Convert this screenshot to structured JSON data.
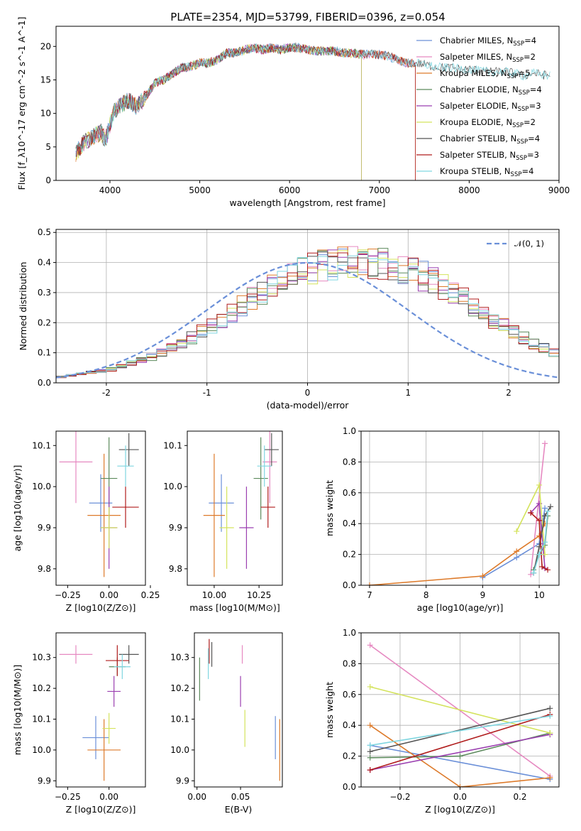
{
  "figure": {
    "title": "PLATE=2354, MJD=53799, FIBERID=0396, z=0.054"
  },
  "chart_data": [
    {
      "id": "spectrum",
      "type": "line",
      "xlabel": "wavelength [Angstrom, rest frame]",
      "ylabel": "Flux [f_λ10^-17 erg cm^-2 s^-1 A^-1]",
      "xlim": [
        3400,
        9000
      ],
      "ylim": [
        0,
        23
      ],
      "xticks": [
        4000,
        5000,
        6000,
        7000,
        8000,
        9000
      ],
      "yticks": [
        0,
        5,
        10,
        15,
        20
      ],
      "grid": false,
      "legend_position": "right",
      "continuum": {
        "x": [
          3620,
          3700,
          3800,
          3900,
          3950,
          4050,
          4100,
          4200,
          4300,
          4400,
          4500,
          4600,
          4700,
          4800,
          4900,
          5000,
          5100,
          5200,
          5300,
          5400,
          5500,
          5600,
          5700,
          5800,
          5900,
          6000,
          6100,
          6200,
          6300,
          6400,
          6500,
          6600,
          6700,
          6800,
          6900,
          7000,
          7100,
          7200,
          7300,
          7400,
          7500,
          7600,
          7700,
          7800,
          7900,
          8000,
          8100,
          8200,
          8300,
          8400,
          8500,
          8600,
          8700,
          8800,
          8900
        ],
        "y": [
          4.0,
          5.5,
          6.5,
          7.2,
          6.0,
          10.5,
          11.0,
          12.0,
          11.0,
          12.5,
          14.5,
          15.0,
          16.0,
          16.8,
          17.0,
          17.5,
          17.5,
          18.0,
          19.0,
          19.0,
          19.5,
          19.8,
          19.5,
          19.8,
          19.5,
          19.8,
          19.8,
          19.5,
          19.3,
          19.3,
          19.3,
          19.0,
          19.0,
          18.8,
          18.8,
          18.8,
          18.5,
          18.0,
          17.5,
          17.5,
          17.3,
          17.0,
          16.8,
          16.8,
          16.6,
          16.6,
          16.4,
          16.2,
          16.2,
          16.2,
          16.0,
          15.6,
          16.0,
          15.8,
          15.6
        ]
      },
      "series": [
        {
          "name": "Chabrier MILES, N_SSP=4",
          "color": "#6a8fd8",
          "xmax": 7400
        },
        {
          "name": "Salpeter MILES, N_SSP=2",
          "color": "#e689c1",
          "xmax": 7400
        },
        {
          "name": "Kroupa MILES, N_SSP=5",
          "color": "#dd7a2a",
          "xmax": 7400
        },
        {
          "name": "Chabrier ELODIE, N_SSP=4",
          "color": "#5c8a5c",
          "xmax": 6800
        },
        {
          "name": "Salpeter ELODIE, N_SSP=3",
          "color": "#9b3fb0",
          "xmax": 6800
        },
        {
          "name": "Kroupa ELODIE, N_SSP=2",
          "color": "#d4e35c",
          "xmax": 6800
        },
        {
          "name": "Chabrier STELIB, N_SSP=4",
          "color": "#555555",
          "xmax": 8900
        },
        {
          "name": "Salpeter STELIB, N_SSP=3",
          "color": "#b01c1c",
          "xmax": 7400
        },
        {
          "name": "Kroupa STELIB, N_SSP=4",
          "color": "#7fd6e0",
          "xmax": 8900
        }
      ],
      "legend": [
        {
          "base": "Chabrier MILES, N",
          "sub": "SSP",
          "tail": "=4",
          "color": "#6a8fd8"
        },
        {
          "base": "Salpeter MILES, N",
          "sub": "SSP",
          "tail": "=2",
          "color": "#e689c1"
        },
        {
          "base": "Kroupa MILES, N",
          "sub": "SSP",
          "tail": "=5",
          "color": "#dd7a2a"
        },
        {
          "base": "Chabrier ELODIE, N",
          "sub": "SSP",
          "tail": "=4",
          "color": "#5c8a5c"
        },
        {
          "base": "Salpeter ELODIE, N",
          "sub": "SSP",
          "tail": "=3",
          "color": "#9b3fb0"
        },
        {
          "base": "Kroupa ELODIE, N",
          "sub": "SSP",
          "tail": "=2",
          "color": "#d4e35c"
        },
        {
          "base": "Chabrier STELIB, N",
          "sub": "SSP",
          "tail": "=4",
          "color": "#555555"
        },
        {
          "base": "Salpeter STELIB, N",
          "sub": "SSP",
          "tail": "=3",
          "color": "#b01c1c"
        },
        {
          "base": "Kroupa STELIB, N",
          "sub": "SSP",
          "tail": "=4",
          "color": "#7fd6e0"
        }
      ]
    },
    {
      "id": "residuals",
      "type": "line",
      "xlabel": "(data-model)/error",
      "ylabel": "Normed distribution",
      "xlim": [
        -2.5,
        2.5
      ],
      "ylim": [
        0,
        0.51
      ],
      "xticks": [
        -2,
        -1,
        0,
        1,
        2
      ],
      "yticks": [
        0.0,
        0.1,
        0.2,
        0.3,
        0.4,
        0.5
      ],
      "grid": true,
      "legend_position": "top-right",
      "gaussian_label": "𝒩(0, 1)",
      "gaussian_color": "#6a8fd8",
      "bin_width": 0.1,
      "bin_start": -2.5,
      "histogram_center": [
        0.02,
        0.025,
        0.03,
        0.035,
        0.04,
        0.045,
        0.055,
        0.065,
        0.075,
        0.085,
        0.1,
        0.115,
        0.13,
        0.15,
        0.17,
        0.19,
        0.21,
        0.23,
        0.255,
        0.28,
        0.3,
        0.32,
        0.34,
        0.355,
        0.37,
        0.38,
        0.39,
        0.395,
        0.4,
        0.4,
        0.4,
        0.4,
        0.395,
        0.39,
        0.38,
        0.37,
        0.355,
        0.34,
        0.32,
        0.3,
        0.28,
        0.255,
        0.23,
        0.21,
        0.19,
        0.17,
        0.15,
        0.13,
        0.115,
        0.1
      ],
      "series": [
        {
          "color": "#6a8fd8"
        },
        {
          "color": "#e689c1"
        },
        {
          "color": "#dd7a2a"
        },
        {
          "color": "#5c8a5c"
        },
        {
          "color": "#9b3fb0"
        },
        {
          "color": "#d4e35c"
        },
        {
          "color": "#555555"
        },
        {
          "color": "#b01c1c"
        },
        {
          "color": "#7fd6e0"
        }
      ]
    },
    {
      "id": "age-vs-Z",
      "type": "scatter",
      "xlabel": "Z [log10(Z/Z⊙)]",
      "ylabel": "age [log10(age/yr)]",
      "xlim": [
        -0.32,
        0.22
      ],
      "ylim": [
        9.76,
        10.135
      ],
      "xticks": [
        -0.25,
        0.0,
        0.25
      ],
      "xtick_labels": [
        "−0.25",
        "0.00",
        "0.25"
      ],
      "yticks": [
        9.8,
        9.9,
        10.0,
        10.1
      ],
      "grid": false,
      "points": [
        {
          "x": -0.05,
          "y": 9.96,
          "xerr": 0.07,
          "yerr": 0.07,
          "color": "#6a8fd8"
        },
        {
          "x": -0.2,
          "y": 10.06,
          "xerr": 0.1,
          "yerr": 0.1,
          "color": "#e689c1"
        },
        {
          "x": -0.03,
          "y": 9.93,
          "xerr": 0.1,
          "yerr": 0.15,
          "color": "#dd7a2a"
        },
        {
          "x": 0.0,
          "y": 10.02,
          "xerr": 0.05,
          "yerr": 0.1,
          "color": "#5c8a5c"
        },
        {
          "x": 0.0,
          "y": 9.9,
          "xerr": 0.05,
          "yerr": 0.1,
          "color": "#9b3fb0"
        },
        {
          "x": 0.0,
          "y": 9.9,
          "xerr": 0.05,
          "yerr": 0.05,
          "color": "#d4e35c"
        },
        {
          "x": 0.12,
          "y": 10.09,
          "xerr": 0.06,
          "yerr": 0.04,
          "color": "#555555"
        },
        {
          "x": 0.1,
          "y": 9.95,
          "xerr": 0.08,
          "yerr": 0.05,
          "color": "#b01c1c"
        },
        {
          "x": 0.1,
          "y": 10.05,
          "xerr": 0.05,
          "yerr": 0.05,
          "color": "#7fd6e0"
        }
      ]
    },
    {
      "id": "age-vs-mass",
      "type": "scatter",
      "xlabel": "mass [log10(M/M⊙)]",
      "ylabel": "",
      "xlim": [
        9.85,
        10.38
      ],
      "ylim": [
        9.76,
        10.135
      ],
      "xticks": [
        10.0,
        10.25
      ],
      "xtick_labels": [
        "10.00",
        "10.25"
      ],
      "yticks": [
        9.8,
        9.9,
        10.0,
        10.1
      ],
      "grid": false,
      "points": [
        {
          "x": 10.04,
          "y": 9.96,
          "xerr": 0.07,
          "yerr": 0.07,
          "color": "#6a8fd8"
        },
        {
          "x": 10.31,
          "y": 10.06,
          "xerr": 0.04,
          "yerr": 0.1,
          "color": "#e689c1"
        },
        {
          "x": 10.0,
          "y": 9.93,
          "xerr": 0.06,
          "yerr": 0.15,
          "color": "#dd7a2a"
        },
        {
          "x": 10.26,
          "y": 10.02,
          "xerr": 0.04,
          "yerr": 0.1,
          "color": "#5c8a5c"
        },
        {
          "x": 10.18,
          "y": 9.9,
          "xerr": 0.04,
          "yerr": 0.1,
          "color": "#9b3fb0"
        },
        {
          "x": 10.07,
          "y": 9.9,
          "xerr": 0.04,
          "yerr": 0.1,
          "color": "#d4e35c"
        },
        {
          "x": 10.32,
          "y": 10.09,
          "xerr": 0.04,
          "yerr": 0.04,
          "color": "#555555"
        },
        {
          "x": 10.3,
          "y": 9.95,
          "xerr": 0.04,
          "yerr": 0.05,
          "color": "#b01c1c"
        },
        {
          "x": 10.28,
          "y": 10.05,
          "xerr": 0.04,
          "yerr": 0.05,
          "color": "#7fd6e0"
        }
      ]
    },
    {
      "id": "weight-vs-age",
      "type": "line",
      "xlabel": "age [log10(age/yr)]",
      "ylabel": "mass weight",
      "xlim": [
        6.85,
        10.35
      ],
      "ylim": [
        0,
        1.0
      ],
      "xticks": [
        7,
        8,
        9,
        10
      ],
      "yticks": [
        0.0,
        0.2,
        0.4,
        0.6,
        0.8,
        1.0
      ],
      "grid": true,
      "series": [
        {
          "color": "#6a8fd8",
          "x": [
            9.0,
            9.6,
            10.0,
            10.1
          ],
          "y": [
            0.05,
            0.18,
            0.27,
            0.5
          ]
        },
        {
          "color": "#e689c1",
          "x": [
            9.85,
            10.1
          ],
          "y": [
            0.07,
            0.92
          ]
        },
        {
          "color": "#dd7a2a",
          "x": [
            7.0,
            9.0,
            9.6,
            10.0,
            10.1
          ],
          "y": [
            0.0,
            0.06,
            0.22,
            0.32,
            0.4
          ]
        },
        {
          "color": "#5c8a5c",
          "x": [
            9.9,
            10.0,
            10.1,
            10.15
          ],
          "y": [
            0.1,
            0.2,
            0.26,
            0.45
          ]
        },
        {
          "color": "#9b3fb0",
          "x": [
            9.85,
            10.0,
            10.1
          ],
          "y": [
            0.47,
            0.53,
            0.11
          ]
        },
        {
          "color": "#d4e35c",
          "x": [
            9.6,
            10.0,
            10.1
          ],
          "y": [
            0.35,
            0.65,
            0.2
          ]
        },
        {
          "color": "#555555",
          "x": [
            9.9,
            10.0,
            10.1,
            10.2
          ],
          "y": [
            0.08,
            0.25,
            0.45,
            0.51
          ]
        },
        {
          "color": "#b01c1c",
          "x": [
            9.85,
            10.0,
            10.05,
            10.15
          ],
          "y": [
            0.47,
            0.42,
            0.12,
            0.1
          ]
        },
        {
          "color": "#7fd6e0",
          "x": [
            9.9,
            10.0,
            10.1,
            10.15
          ],
          "y": [
            0.08,
            0.2,
            0.28,
            0.48
          ]
        }
      ]
    },
    {
      "id": "mass-vs-Z",
      "type": "scatter",
      "xlabel": "Z [log10(Z/Z⊙)]",
      "ylabel": "mass [log10(M/M⊙)]",
      "xlim": [
        -0.32,
        0.22
      ],
      "ylim": [
        9.88,
        10.38
      ],
      "xticks": [
        -0.25,
        0.0
      ],
      "xtick_labels": [
        "−0.25",
        "0.00"
      ],
      "yticks": [
        9.9,
        10.0,
        10.1,
        10.2,
        10.3
      ],
      "grid": false,
      "points": [
        {
          "x": -0.08,
          "y": 10.04,
          "xerr": 0.08,
          "yerr": 0.07,
          "color": "#6a8fd8"
        },
        {
          "x": -0.2,
          "y": 10.31,
          "xerr": 0.1,
          "yerr": 0.03,
          "color": "#e689c1"
        },
        {
          "x": -0.03,
          "y": 10.0,
          "xerr": 0.1,
          "yerr": 0.1,
          "color": "#dd7a2a"
        },
        {
          "x": 0.05,
          "y": 10.27,
          "xerr": 0.05,
          "yerr": 0.03,
          "color": "#5c8a5c"
        },
        {
          "x": 0.03,
          "y": 10.19,
          "xerr": 0.04,
          "yerr": 0.05,
          "color": "#9b3fb0"
        },
        {
          "x": 0.0,
          "y": 10.07,
          "xerr": 0.04,
          "yerr": 0.05,
          "color": "#d4e35c"
        },
        {
          "x": 0.12,
          "y": 10.31,
          "xerr": 0.06,
          "yerr": 0.03,
          "color": "#555555"
        },
        {
          "x": 0.05,
          "y": 10.29,
          "xerr": 0.07,
          "yerr": 0.05,
          "color": "#b01c1c"
        },
        {
          "x": 0.08,
          "y": 10.27,
          "xerr": 0.05,
          "yerr": 0.04,
          "color": "#7fd6e0"
        }
      ]
    },
    {
      "id": "mass-vs-ebv",
      "type": "scatter",
      "xlabel": "E(B-V)",
      "ylabel": "",
      "xlim": [
        -0.003,
        0.098
      ],
      "ylim": [
        9.88,
        10.38
      ],
      "xticks": [
        0.0,
        0.05
      ],
      "xtick_labels": [
        "0.00",
        "0.05"
      ],
      "yticks": [
        9.9,
        10.0,
        10.1,
        10.2,
        10.3
      ],
      "grid": false,
      "points": [
        {
          "x": 0.09,
          "y": 10.04,
          "yerr": 0.07,
          "color": "#6a8fd8"
        },
        {
          "x": 0.052,
          "y": 10.31,
          "yerr": 0.03,
          "color": "#e689c1"
        },
        {
          "x": 0.095,
          "y": 10.0,
          "yerr": 0.1,
          "color": "#dd7a2a"
        },
        {
          "x": 0.003,
          "y": 10.23,
          "yerr": 0.07,
          "color": "#5c8a5c"
        },
        {
          "x": 0.05,
          "y": 10.19,
          "yerr": 0.05,
          "color": "#9b3fb0"
        },
        {
          "x": 0.055,
          "y": 10.07,
          "yerr": 0.06,
          "color": "#d4e35c"
        },
        {
          "x": 0.017,
          "y": 10.31,
          "yerr": 0.04,
          "color": "#555555"
        },
        {
          "x": 0.014,
          "y": 10.32,
          "yerr": 0.04,
          "color": "#b01c1c"
        },
        {
          "x": 0.013,
          "y": 10.28,
          "yerr": 0.05,
          "color": "#7fd6e0"
        }
      ]
    },
    {
      "id": "weight-vs-Z",
      "type": "line",
      "xlabel": "Z [log10(Z/Z⊙)]",
      "ylabel": "mass weight",
      "xlim": [
        -0.33,
        0.33
      ],
      "ylim": [
        0,
        1.0
      ],
      "xticks": [
        -0.2,
        0.0,
        0.2
      ],
      "xtick_labels": [
        "−0.2",
        "0.0",
        "0.2"
      ],
      "yticks": [
        0.0,
        0.2,
        0.4,
        0.6,
        0.8,
        1.0
      ],
      "grid": true,
      "series": [
        {
          "color": "#6a8fd8",
          "x": [
            -0.3,
            0.3
          ],
          "y": [
            0.27,
            0.05
          ]
        },
        {
          "color": "#e689c1",
          "x": [
            -0.3,
            0.3
          ],
          "y": [
            0.92,
            0.07
          ]
        },
        {
          "color": "#dd7a2a",
          "x": [
            -0.3,
            0.0,
            0.3
          ],
          "y": [
            0.4,
            0.0,
            0.06
          ]
        },
        {
          "color": "#5c8a5c",
          "x": [
            -0.3,
            0.0,
            0.3
          ],
          "y": [
            0.19,
            0.2,
            0.35
          ]
        },
        {
          "color": "#9b3fb0",
          "x": [
            -0.3,
            0.3
          ],
          "y": [
            0.11,
            0.34
          ]
        },
        {
          "color": "#d4e35c",
          "x": [
            -0.3,
            0.3
          ],
          "y": [
            0.65,
            0.35
          ]
        },
        {
          "color": "#555555",
          "x": [
            -0.3,
            0.3
          ],
          "y": [
            0.23,
            0.51
          ]
        },
        {
          "color": "#b01c1c",
          "x": [
            -0.3,
            0.3
          ],
          "y": [
            0.11,
            0.47
          ]
        },
        {
          "color": "#7fd6e0",
          "x": [
            -0.3,
            0.3
          ],
          "y": [
            0.27,
            0.46
          ]
        }
      ]
    }
  ]
}
